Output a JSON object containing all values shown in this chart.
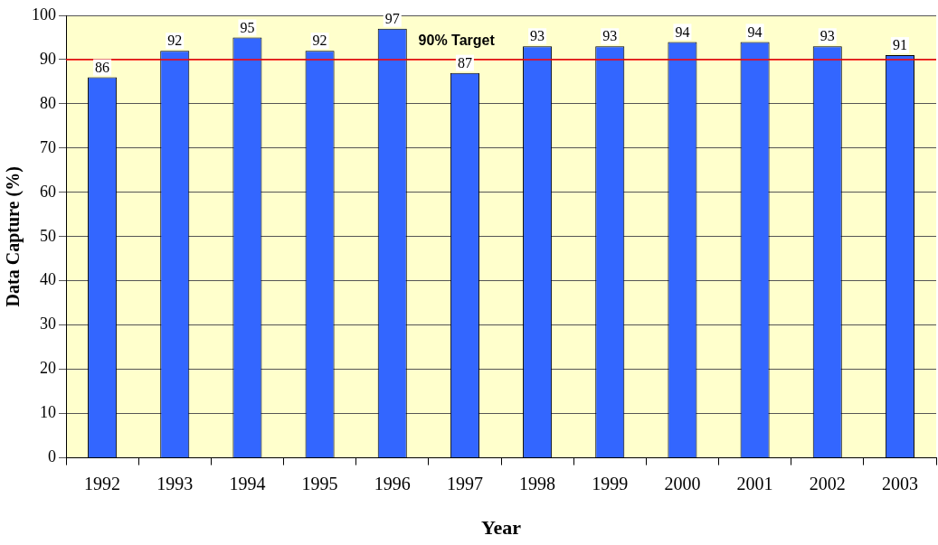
{
  "chart_data": {
    "type": "bar",
    "xlabel": "Year",
    "ylabel": "Data Capture (%)",
    "categories": [
      "1992",
      "1993",
      "1994",
      "1995",
      "1996",
      "1997",
      "1998",
      "1999",
      "2000",
      "2001",
      "2002",
      "2003"
    ],
    "values": [
      86,
      92,
      95,
      92,
      97,
      87,
      93,
      93,
      94,
      94,
      93,
      91
    ],
    "color": "#3366ff",
    "ylim": [
      0,
      100
    ],
    "yticks": [
      0,
      10,
      20,
      30,
      40,
      50,
      60,
      70,
      80,
      90,
      100
    ],
    "grid": "y",
    "data_labels": true,
    "ref_lines": [
      {
        "axis": "y",
        "value": 90,
        "label": "90% Target",
        "color": "#ff0000"
      }
    ]
  }
}
